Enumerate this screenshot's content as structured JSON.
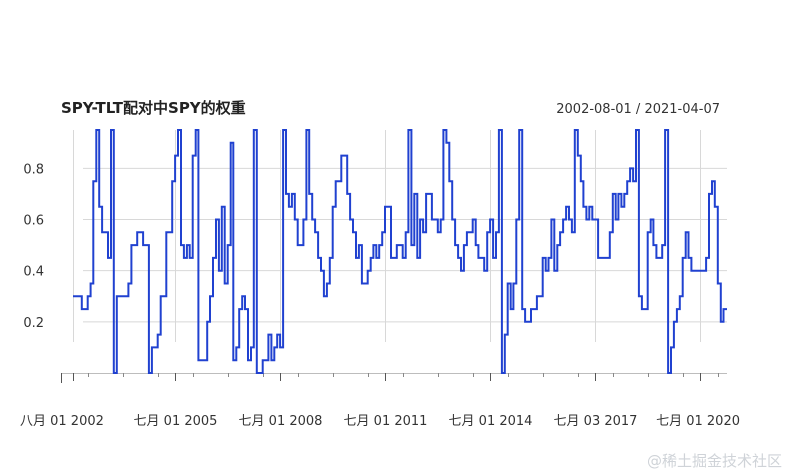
{
  "chart_data": {
    "type": "line",
    "title": "SPY-TLT配对中SPY的权重",
    "date_range": "2002-08-01 / 2021-04-07",
    "line_color": "#2041d0",
    "grid_color": "#d8d8d8",
    "ylim": [
      0.0,
      0.95
    ],
    "y_ticks": [
      0.2,
      0.4,
      0.6,
      0.8
    ],
    "y_tick_labels": [
      "0.2",
      "0.4",
      "0.6",
      "0.8"
    ],
    "x_ticks": [
      "2002-08-01",
      "2005-07-01",
      "2008-07-01",
      "2011-07-01",
      "2014-07-01",
      "2017-07-03",
      "2020-07-01"
    ],
    "x_tick_labels": [
      "八月 01 2002",
      "七月 01 2005",
      "七月 01 2008",
      "七月 01 2011",
      "七月 01 2014",
      "七月 03 2017",
      "七月 01 2020"
    ],
    "x_start": "2002-08-01",
    "x_end": "2021-04-07",
    "series": [
      {
        "x": [
          "2002-08-01",
          "2002-11-01",
          "2003-01-01",
          "2003-02-01",
          "2003-03-01",
          "2003-04-01",
          "2003-05-01",
          "2003-06-01",
          "2003-07-01",
          "2003-08-01",
          "2003-09-01",
          "2003-10-01",
          "2003-11-01",
          "2004-03-01",
          "2004-04-01",
          "2004-06-01",
          "2004-08-01",
          "2004-10-01",
          "2004-11-01",
          "2005-01-01",
          "2005-02-01",
          "2005-04-01",
          "2005-06-01",
          "2005-07-01",
          "2005-08-01",
          "2005-09-01",
          "2005-10-01",
          "2005-11-01",
          "2005-12-01",
          "2006-01-01",
          "2006-02-01",
          "2006-03-01",
          "2006-06-01",
          "2006-07-01",
          "2006-08-01",
          "2006-09-01",
          "2006-10-01",
          "2006-11-01",
          "2006-12-01",
          "2007-01-01",
          "2007-02-01",
          "2007-03-01",
          "2007-04-01",
          "2007-05-01",
          "2007-06-01",
          "2007-07-01",
          "2007-08-01",
          "2007-09-01",
          "2007-10-01",
          "2007-11-01",
          "2008-01-01",
          "2008-03-01",
          "2008-04-01",
          "2008-05-01",
          "2008-06-01",
          "2008-07-01",
          "2008-08-01",
          "2008-09-01",
          "2008-10-01",
          "2008-11-01",
          "2008-12-01",
          "2009-01-01",
          "2009-02-01",
          "2009-03-01",
          "2009-04-01",
          "2009-05-01",
          "2009-06-01",
          "2009-07-01",
          "2009-08-01",
          "2009-09-01",
          "2009-10-01",
          "2009-11-01",
          "2009-12-01",
          "2010-01-01",
          "2010-02-01",
          "2010-04-01",
          "2010-06-01",
          "2010-07-01",
          "2010-08-01",
          "2010-09-01",
          "2010-10-01",
          "2010-11-01",
          "2010-12-01",
          "2011-01-01",
          "2011-02-01",
          "2011-03-01",
          "2011-04-01",
          "2011-05-01",
          "2011-06-01",
          "2011-07-01",
          "2011-08-01",
          "2011-09-01",
          "2011-10-01",
          "2011-11-01",
          "2012-01-01",
          "2012-02-01",
          "2012-03-01",
          "2012-04-01",
          "2012-05-01",
          "2012-06-01",
          "2012-07-01",
          "2012-08-01",
          "2012-09-01",
          "2012-11-01",
          "2013-01-01",
          "2013-02-01",
          "2013-03-01",
          "2013-04-01",
          "2013-05-01",
          "2013-06-01",
          "2013-07-01",
          "2013-08-01",
          "2013-09-01",
          "2013-10-01",
          "2013-11-01",
          "2014-01-01",
          "2014-02-01",
          "2014-03-01",
          "2014-04-01",
          "2014-05-01",
          "2014-06-01",
          "2014-07-01",
          "2014-08-01",
          "2014-09-01",
          "2014-10-01",
          "2014-11-01",
          "2014-12-01",
          "2015-01-01",
          "2015-02-01",
          "2015-03-01",
          "2015-04-01",
          "2015-05-01",
          "2015-06-01",
          "2015-07-01",
          "2015-09-01",
          "2015-11-01",
          "2016-01-01",
          "2016-02-01",
          "2016-03-01",
          "2016-04-01",
          "2016-05-01",
          "2016-06-01",
          "2016-07-01",
          "2016-08-01",
          "2016-09-01",
          "2016-10-01",
          "2016-11-01",
          "2016-12-01",
          "2017-01-01",
          "2017-02-01",
          "2017-03-01",
          "2017-04-01",
          "2017-05-01",
          "2017-06-01",
          "2017-08-01",
          "2017-10-01",
          "2017-12-01",
          "2018-01-01",
          "2018-02-01",
          "2018-03-01",
          "2018-04-01",
          "2018-05-01",
          "2018-06-01",
          "2018-07-01",
          "2018-08-01",
          "2018-09-01",
          "2018-10-01",
          "2018-11-01",
          "2019-01-01",
          "2019-02-01",
          "2019-03-01",
          "2019-04-01",
          "2019-05-01",
          "2019-06-01",
          "2019-07-01",
          "2019-08-01",
          "2019-09-01",
          "2019-10-01",
          "2019-11-01",
          "2019-12-01",
          "2020-01-01",
          "2020-02-01",
          "2020-03-01",
          "2020-04-01",
          "2020-05-01",
          "2020-06-01",
          "2020-08-01",
          "2020-09-01",
          "2020-10-01",
          "2020-11-01",
          "2020-12-01",
          "2021-01-01",
          "2021-02-01",
          "2021-03-01",
          "2021-04-07"
        ],
        "y": [
          0.3,
          0.25,
          0.3,
          0.35,
          0.75,
          0.95,
          0.65,
          0.55,
          0.55,
          0.45,
          0.95,
          0.0,
          0.3,
          0.35,
          0.5,
          0.55,
          0.5,
          0.0,
          0.1,
          0.15,
          0.3,
          0.55,
          0.75,
          0.85,
          0.95,
          0.5,
          0.45,
          0.5,
          0.45,
          0.85,
          0.95,
          0.05,
          0.2,
          0.3,
          0.45,
          0.6,
          0.4,
          0.65,
          0.35,
          0.5,
          0.9,
          0.05,
          0.1,
          0.25,
          0.3,
          0.25,
          0.05,
          0.1,
          0.95,
          0.0,
          0.05,
          0.15,
          0.05,
          0.1,
          0.15,
          0.1,
          0.95,
          0.7,
          0.65,
          0.7,
          0.6,
          0.5,
          0.5,
          0.6,
          0.95,
          0.7,
          0.6,
          0.55,
          0.45,
          0.4,
          0.3,
          0.35,
          0.45,
          0.65,
          0.75,
          0.85,
          0.7,
          0.6,
          0.55,
          0.45,
          0.5,
          0.35,
          0.35,
          0.4,
          0.45,
          0.5,
          0.45,
          0.5,
          0.55,
          0.65,
          0.65,
          0.45,
          0.45,
          0.5,
          0.45,
          0.55,
          0.95,
          0.5,
          0.7,
          0.45,
          0.6,
          0.55,
          0.7,
          0.6,
          0.55,
          0.6,
          0.95,
          0.9,
          0.75,
          0.6,
          0.5,
          0.45,
          0.4,
          0.5,
          0.55,
          0.6,
          0.5,
          0.45,
          0.45,
          0.4,
          0.55,
          0.6,
          0.45,
          0.55,
          0.95,
          0.0,
          0.15,
          0.35,
          0.25,
          0.35,
          0.6,
          0.95,
          0.25,
          0.2,
          0.25,
          0.3,
          0.45,
          0.4,
          0.45,
          0.6,
          0.4,
          0.5,
          0.55,
          0.6,
          0.65,
          0.6,
          0.55,
          0.95,
          0.85,
          0.75,
          0.65,
          0.6,
          0.65,
          0.6,
          0.45,
          0.45,
          0.55,
          0.7,
          0.6,
          0.7,
          0.65,
          0.7,
          0.75,
          0.8,
          0.75,
          0.95,
          0.3,
          0.25,
          0.55,
          0.6,
          0.5,
          0.45,
          0.45,
          0.5,
          0.95,
          0.0,
          0.1,
          0.2,
          0.25,
          0.3,
          0.45,
          0.55,
          0.45,
          0.4,
          0.4,
          0.4,
          0.4,
          0.45,
          0.7,
          0.75,
          0.65,
          0.35,
          0.2,
          0.25,
          0.25
        ]
      }
    ]
  },
  "watermark": "@稀土掘金技术社区"
}
